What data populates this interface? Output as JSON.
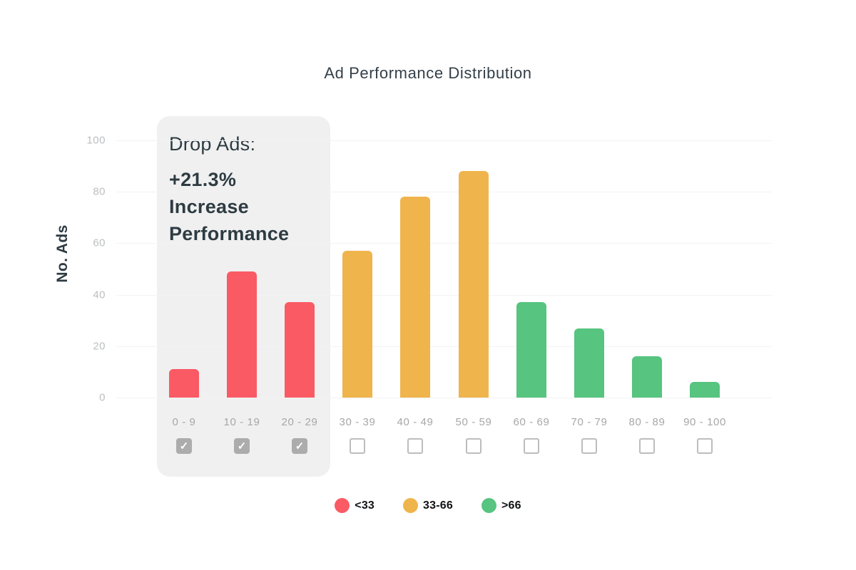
{
  "chart_data": {
    "type": "bar",
    "title": "Ad Performance Distribution",
    "ylabel": "No. Ads",
    "xlabel": "",
    "ylim": [
      0,
      100
    ],
    "yticks": [
      0,
      20,
      40,
      60,
      80,
      100
    ],
    "grid": "horizontal",
    "legend_position": "bottom",
    "categories": [
      "0 - 9",
      "10 - 19",
      "20 - 29",
      "30 - 39",
      "40 - 49",
      "50 - 59",
      "60 - 69",
      "70 - 79",
      "80 - 89",
      "90 - 100"
    ],
    "values": [
      11,
      49,
      37,
      57,
      78,
      88,
      37,
      27,
      16,
      6
    ],
    "groups": [
      "<33",
      "<33",
      "<33",
      "33-66",
      "33-66",
      "33-66",
      ">66",
      ">66",
      ">66",
      ">66"
    ],
    "checked": [
      true,
      true,
      true,
      false,
      false,
      false,
      false,
      false,
      false,
      false
    ],
    "legend": [
      {
        "label": "<33",
        "color": "#FA5A64"
      },
      {
        "label": "33-66",
        "color": "#F0B44C"
      },
      {
        "label": ">66",
        "color": "#57C47F"
      }
    ]
  },
  "annotation": {
    "label": "Drop Ads:",
    "lines": [
      "+21.3%",
      "Increase",
      "Performance"
    ]
  },
  "colors": {
    "red": "#FA5A64",
    "orange": "#F0B44C",
    "green": "#57C47F",
    "panel_bg": "#F0F0F1",
    "grid": "#F2F3F4",
    "tick_text": "#BBBEC0",
    "category_text": "#A7A7A7",
    "dark_text": "#2E3C42",
    "checkbox_checked_bg": "#ACACAC",
    "checkbox_border": "#BDBDBD",
    "check_glyph": "✓"
  }
}
